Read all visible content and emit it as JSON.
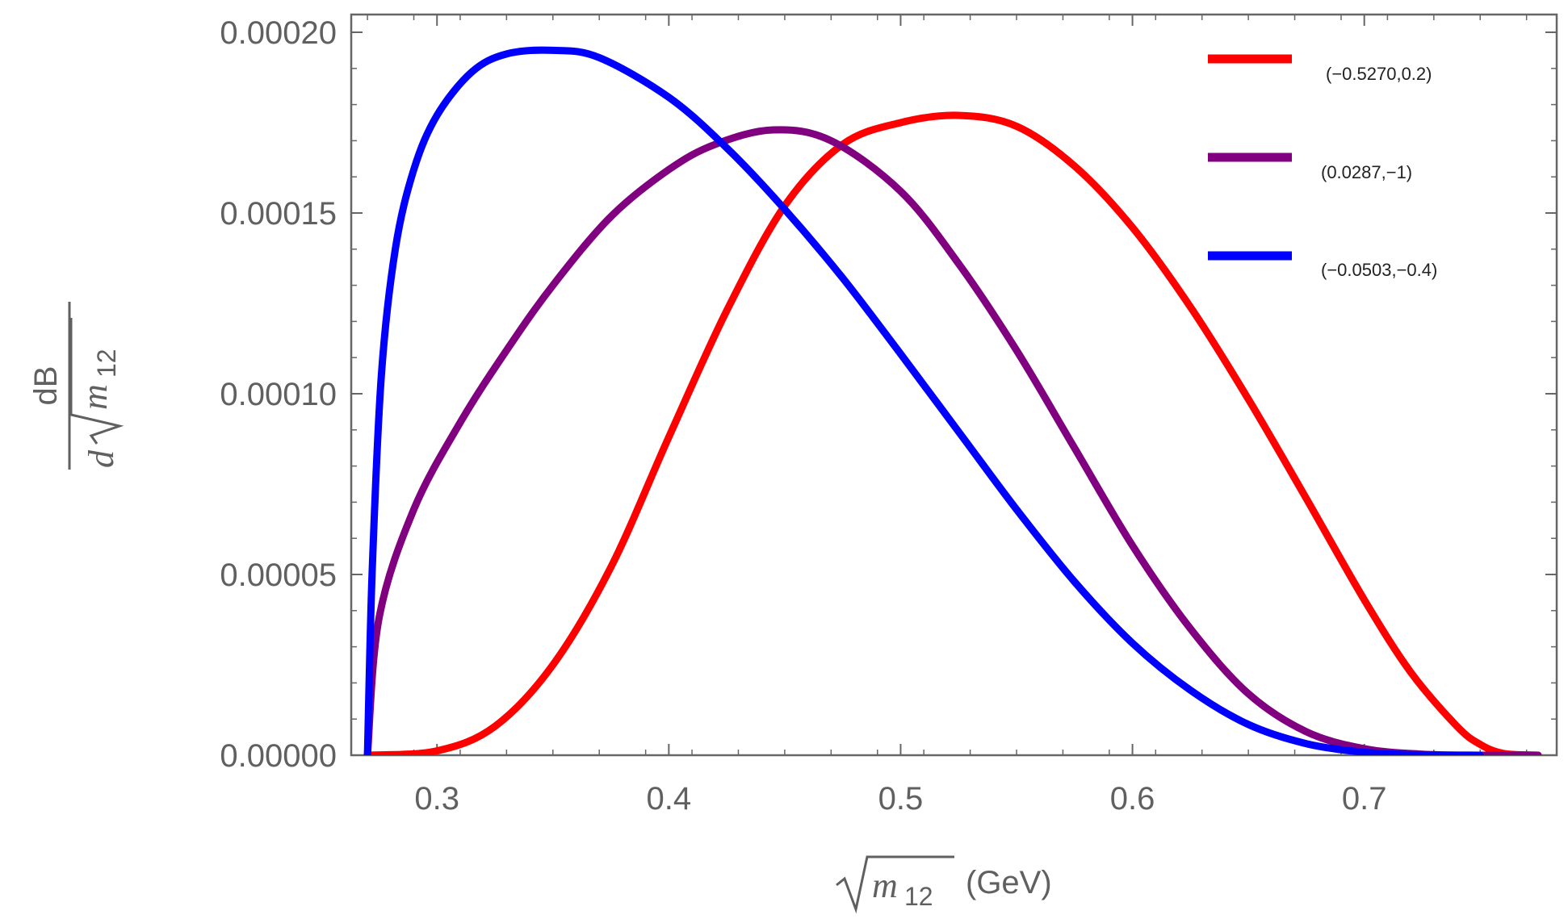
{
  "chart_data": {
    "type": "line",
    "title": "",
    "xlabel": {
      "radical_symbol": "m",
      "subscript": "12",
      "unit": "(GeV)"
    },
    "ylabel": {
      "numerator": "dB",
      "denominator_prefix": "d",
      "radical_symbol": "m",
      "subscript": "12"
    },
    "xlim": [
      0.263,
      0.783
    ],
    "ylim": [
      0,
      0.00021
    ],
    "x_ticks": [
      0.3,
      0.4,
      0.5,
      0.6,
      0.7
    ],
    "x_tick_labels": [
      "0.3",
      "0.4",
      "0.5",
      "0.6",
      "0.7"
    ],
    "y_ticks": [
      0,
      5e-05,
      0.0001,
      0.00015,
      0.0002
    ],
    "y_tick_labels": [
      "0.00000",
      "0.00005",
      "0.00010",
      "0.00015",
      "0.00020"
    ],
    "legend_position": "top-right",
    "series": [
      {
        "name": "(−0.5270,0.2)",
        "color": "#ff0000",
        "x": [
          0.27,
          0.3,
          0.325,
          0.35,
          0.375,
          0.4,
          0.425,
          0.45,
          0.475,
          0.5,
          0.525,
          0.55,
          0.575,
          0.6,
          0.625,
          0.65,
          0.675,
          0.7,
          0.72,
          0.74,
          0.75,
          0.76,
          0.775
        ],
        "y": [
          0,
          1.2e-06,
          8e-06,
          2.5e-05,
          5.2e-05,
          8.8e-05,
          0.000123,
          0.000152,
          0.000169,
          0.000175,
          0.000177,
          0.000174,
          0.000163,
          0.000146,
          0.000124,
          9.85e-05,
          7.1e-05,
          4.3e-05,
          2.3e-05,
          8e-06,
          3e-06,
          5e-07,
          0
        ]
      },
      {
        "name": "(0.0287,−1)",
        "color": "#800080",
        "x": [
          0.27,
          0.275,
          0.29,
          0.31,
          0.33,
          0.35,
          0.375,
          0.4,
          0.42,
          0.445,
          0.47,
          0.5,
          0.525,
          0.55,
          0.575,
          0.6,
          0.625,
          0.65,
          0.675,
          0.7,
          0.725,
          0.75,
          0.775
        ],
        "y": [
          0,
          3.8e-05,
          6.8e-05,
          9.2e-05,
          0.000112,
          0.00013,
          0.000149,
          0.000162,
          0.000169,
          0.000173,
          0.00017,
          0.000156,
          0.000136,
          0.000112,
          8.5e-05,
          5.8e-05,
          3.5e-05,
          1.7e-05,
          6.5e-06,
          1.8e-06,
          3e-07,
          0,
          0
        ]
      },
      {
        "name": "(−0.0503,−0.4)",
        "color": "#0000ff",
        "x": [
          0.27,
          0.272,
          0.276,
          0.282,
          0.29,
          0.3,
          0.315,
          0.33,
          0.35,
          0.37,
          0.4,
          0.425,
          0.45,
          0.475,
          0.5,
          0.525,
          0.55,
          0.575,
          0.6,
          0.625,
          0.65,
          0.675,
          0.7,
          0.725,
          0.75
        ],
        "y": [
          0,
          5e-05,
          0.000105,
          0.00014,
          0.000162,
          0.000177,
          0.000189,
          0.000194,
          0.000195,
          0.000193,
          0.000182,
          0.000168,
          0.000151,
          0.000132,
          0.000111,
          8.95e-05,
          6.8e-05,
          4.8e-05,
          3.1e-05,
          1.8e-05,
          8.5e-06,
          3.2e-06,
          8e-07,
          1e-07,
          0
        ]
      }
    ]
  }
}
